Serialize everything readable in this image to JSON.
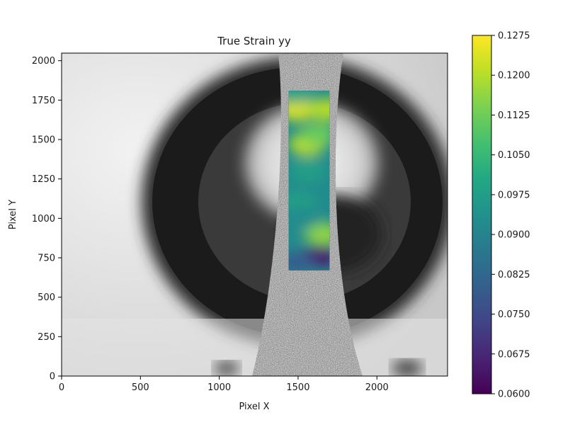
{
  "chart_data": {
    "type": "heatmap",
    "title": "True Strain yy",
    "xlabel": "Pixel X",
    "ylabel": "Pixel Y",
    "xlim": [
      0,
      2448
    ],
    "ylim": [
      0,
      2048
    ],
    "xticks": [
      0,
      500,
      1000,
      1500,
      2000
    ],
    "yticks": [
      0,
      250,
      500,
      750,
      1000,
      1250,
      1500,
      1750,
      2000
    ],
    "background": "grayscale camera image of a dog-bone tensile specimen with speckle pattern in front of a dark lens",
    "overlay_region": {
      "x": [
        1440,
        1700
      ],
      "y": [
        670,
        1810
      ]
    },
    "colorbar": {
      "colormap": "viridis",
      "range": [
        0.06,
        0.1275
      ],
      "ticks": [
        "0.0600",
        "0.0675",
        "0.0750",
        "0.0825",
        "0.0900",
        "0.0975",
        "0.1050",
        "0.1125",
        "0.1200",
        "0.1275"
      ]
    },
    "field_samples": [
      {
        "x": 1490,
        "y": 1690,
        "value": 0.124
      },
      {
        "x": 1680,
        "y": 1690,
        "value": 0.12
      },
      {
        "x": 1560,
        "y": 1470,
        "value": 0.121
      },
      {
        "x": 1620,
        "y": 1530,
        "value": 0.112
      },
      {
        "x": 1480,
        "y": 1800,
        "value": 0.098
      },
      {
        "x": 1560,
        "y": 1300,
        "value": 0.098
      },
      {
        "x": 1500,
        "y": 1100,
        "value": 0.098
      },
      {
        "x": 1660,
        "y": 900,
        "value": 0.116
      },
      {
        "x": 1530,
        "y": 1000,
        "value": 0.092
      },
      {
        "x": 1640,
        "y": 760,
        "value": 0.066
      },
      {
        "x": 1480,
        "y": 720,
        "value": 0.08
      }
    ]
  }
}
